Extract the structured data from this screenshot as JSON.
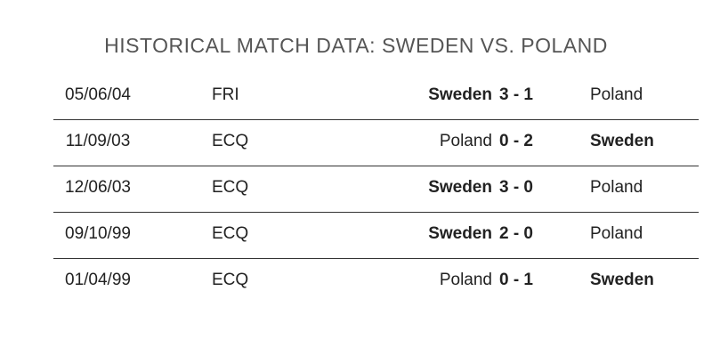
{
  "header": {
    "title": "HISTORICAL MATCH DATA: SWEDEN VS. POLAND"
  },
  "table": {
    "rows": [
      [
        "05/06/04",
        "FRI",
        "Sweden",
        "3 - 1",
        "Poland"
      ],
      [
        "11/09/03",
        "ECQ",
        "Poland",
        "0 - 2",
        "Sweden"
      ],
      [
        "12/06/03",
        "ECQ",
        "Sweden",
        "3 - 0",
        "Poland"
      ],
      [
        "09/10/99",
        "ECQ",
        "Sweden",
        "2 - 0",
        "Poland"
      ],
      [
        "01/04/99",
        "ECQ",
        "Poland",
        "0 - 1",
        "Sweden"
      ]
    ]
  }
}
